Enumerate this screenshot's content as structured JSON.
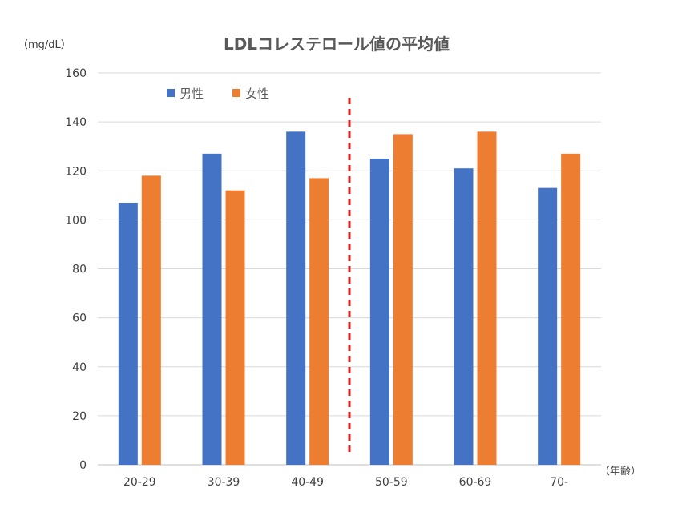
{
  "chart_data": {
    "type": "bar",
    "title": "LDLコレステロール値の平均値",
    "ylabel": "（mg/dL）",
    "xlabel": "（年齢）",
    "categories": [
      "20-29",
      "30-39",
      "40-49",
      "50-59",
      "60-69",
      "70-"
    ],
    "series": [
      {
        "name": "男性",
        "color": "#4472c4",
        "values": [
          107,
          127,
          136,
          125,
          121,
          113
        ]
      },
      {
        "name": "女性",
        "color": "#ed7d31",
        "values": [
          118,
          112,
          117,
          135,
          136,
          127
        ]
      }
    ],
    "ylim": [
      0,
      160
    ],
    "yticks": [
      0,
      20,
      40,
      60,
      80,
      100,
      120,
      140,
      160
    ],
    "grid": true,
    "legend_position": "top-left",
    "divider": {
      "between": [
        "40-49",
        "50-59"
      ],
      "color": "#d91f1f",
      "style": "dashed"
    }
  }
}
